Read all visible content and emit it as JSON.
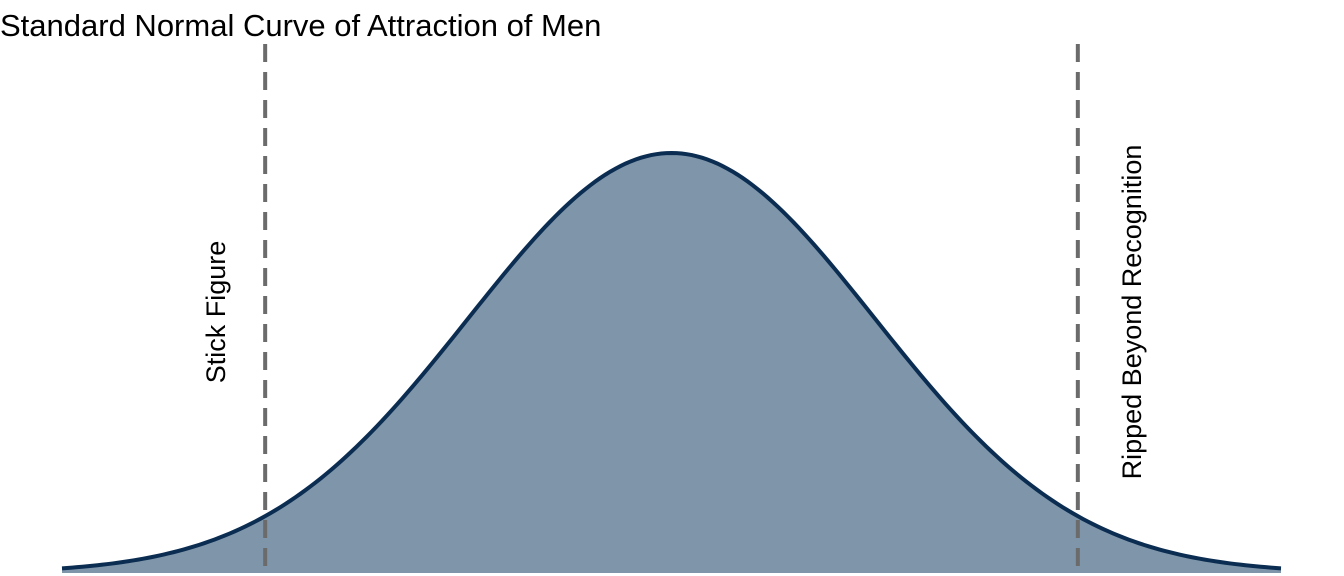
{
  "chart_data": {
    "type": "area",
    "title": "Standard Normal Curve of Attraction of Men",
    "xlabel": "",
    "ylabel": "",
    "xlim": [
      -3,
      3
    ],
    "distribution": {
      "mean": 0,
      "sd": 1
    },
    "reference_lines": [
      {
        "x": -2,
        "label": "Stick Figure",
        "style": "dashed",
        "label_side": "left"
      },
      {
        "x": 2,
        "label": "Ripped Beyond Recognition",
        "style": "dashed",
        "label_side": "right"
      }
    ],
    "grid": false,
    "legend": false
  },
  "colors": {
    "fill": "#7f96aa",
    "line": "#0c2d52",
    "reference_line": "#6b6b6b"
  }
}
